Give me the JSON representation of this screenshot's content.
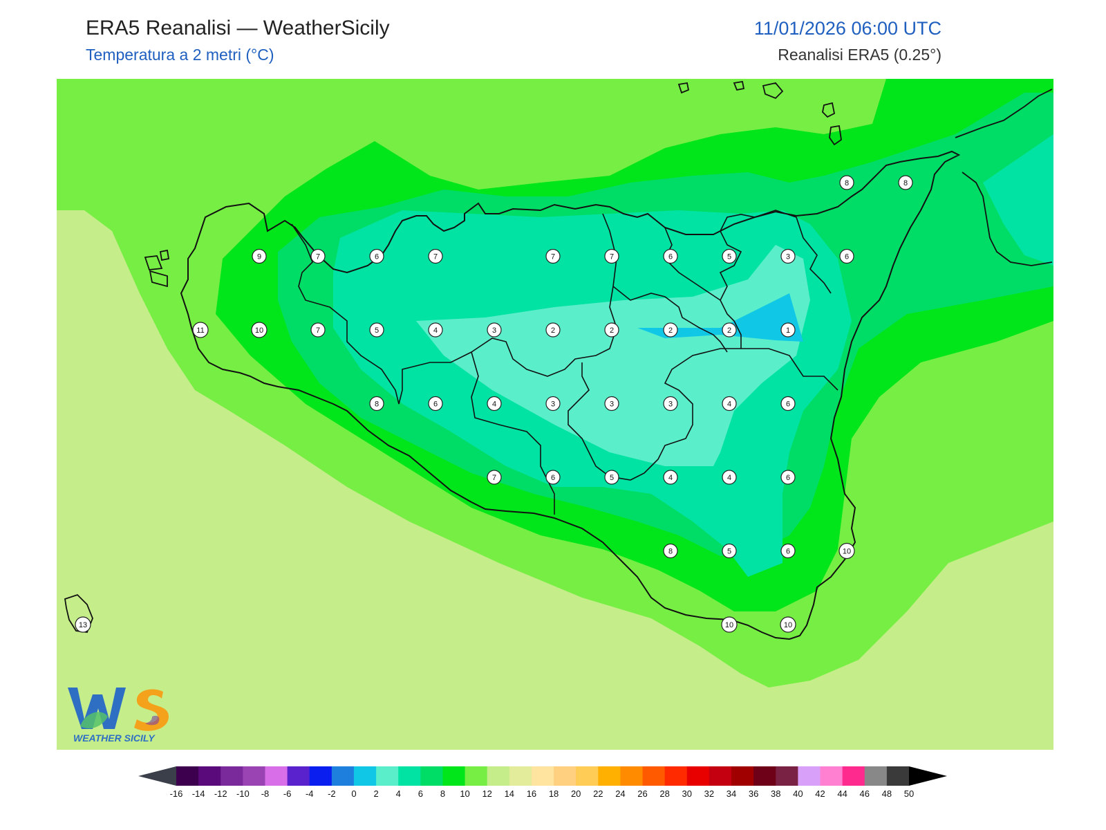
{
  "header": {
    "title": "ERA5 Reanalisi — WeatherSicily",
    "subtitle": "Temperatura a 2 metri (°C)",
    "datetime": "11/01/2026 06:00 UTC",
    "source": "Reanalisi ERA5 (0.25°)"
  },
  "colors": {
    "accent_blue": "#1f5fbf",
    "sea_background": "#c5ee8a",
    "band_12": "#77ee44",
    "band_10": "#00e61a",
    "band_8": "#00dd66",
    "band_6": "#00e3a3",
    "band_4": "#5aeecb",
    "band_2": "#10c8e6"
  },
  "logo": {
    "letters": "WS",
    "text": "WEATHER SICILY"
  },
  "point_labels": [
    {
      "v": "9",
      "lon": 12.5,
      "lat": 38.0
    },
    {
      "v": "7",
      "lon": 13.0,
      "lat": 38.0
    },
    {
      "v": "6",
      "lon": 13.5,
      "lat": 38.0
    },
    {
      "v": "7",
      "lon": 14.0,
      "lat": 38.0
    },
    {
      "v": "7",
      "lon": 15.0,
      "lat": 38.0
    },
    {
      "v": "7",
      "lon": 15.5,
      "lat": 38.0
    },
    {
      "v": "6",
      "lon": 16.0,
      "lat": 38.0
    },
    {
      "v": "5",
      "lon": 16.5,
      "lat": 38.0
    },
    {
      "v": "3",
      "lon": 17.0,
      "lat": 38.0
    },
    {
      "v": "6",
      "lon": 17.5,
      "lat": 38.0
    },
    {
      "v": "8",
      "lon": 17.5,
      "lat": 38.5
    },
    {
      "v": "8",
      "lon": 18.0,
      "lat": 38.5
    },
    {
      "v": "11",
      "lon": 12.0,
      "lat": 37.5
    },
    {
      "v": "10",
      "lon": 12.5,
      "lat": 37.5
    },
    {
      "v": "7",
      "lon": 13.0,
      "lat": 37.5
    },
    {
      "v": "5",
      "lon": 13.5,
      "lat": 37.5
    },
    {
      "v": "4",
      "lon": 14.0,
      "lat": 37.5
    },
    {
      "v": "3",
      "lon": 14.5,
      "lat": 37.5
    },
    {
      "v": "2",
      "lon": 15.0,
      "lat": 37.5
    },
    {
      "v": "2",
      "lon": 15.5,
      "lat": 37.5
    },
    {
      "v": "2",
      "lon": 16.0,
      "lat": 37.5
    },
    {
      "v": "2",
      "lon": 16.5,
      "lat": 37.5
    },
    {
      "v": "1",
      "lon": 17.0,
      "lat": 37.5
    },
    {
      "v": "8",
      "lon": 13.5,
      "lat": 37.0
    },
    {
      "v": "6",
      "lon": 14.0,
      "lat": 37.0
    },
    {
      "v": "4",
      "lon": 14.5,
      "lat": 37.0
    },
    {
      "v": "3",
      "lon": 15.0,
      "lat": 37.0
    },
    {
      "v": "3",
      "lon": 15.5,
      "lat": 37.0
    },
    {
      "v": "3",
      "lon": 16.0,
      "lat": 37.0
    },
    {
      "v": "4",
      "lon": 16.5,
      "lat": 37.0
    },
    {
      "v": "6",
      "lon": 17.0,
      "lat": 37.0
    },
    {
      "v": "7",
      "lon": 14.5,
      "lat": 36.5
    },
    {
      "v": "6",
      "lon": 15.0,
      "lat": 36.5
    },
    {
      "v": "5",
      "lon": 15.5,
      "lat": 36.5
    },
    {
      "v": "4",
      "lon": 16.0,
      "lat": 36.5
    },
    {
      "v": "4",
      "lon": 16.5,
      "lat": 36.5
    },
    {
      "v": "6",
      "lon": 17.0,
      "lat": 36.5
    },
    {
      "v": "8",
      "lon": 16.0,
      "lat": 36.0
    },
    {
      "v": "5",
      "lon": 16.5,
      "lat": 36.0
    },
    {
      "v": "6",
      "lon": 17.0,
      "lat": 36.0
    },
    {
      "v": "10",
      "lon": 17.5,
      "lat": 36.0
    },
    {
      "v": "10",
      "lon": 16.5,
      "lat": 35.5
    },
    {
      "v": "10",
      "lon": 17.0,
      "lat": 35.5
    },
    {
      "v": "13",
      "lon": 11.0,
      "lat": 35.5
    }
  ],
  "colorbar": {
    "ticks": [
      "-16",
      "-14",
      "-12",
      "-10",
      "-8",
      "-6",
      "-4",
      "-2",
      "0",
      "2",
      "4",
      "6",
      "8",
      "10",
      "12",
      "14",
      "16",
      "18",
      "20",
      "22",
      "24",
      "26",
      "28",
      "30",
      "32",
      "34",
      "36",
      "38",
      "40",
      "42",
      "44",
      "46",
      "48",
      "50"
    ],
    "colors": [
      "#3d004f",
      "#5a0a7a",
      "#7a2a9a",
      "#9a44b4",
      "#d86ee8",
      "#5a22cc",
      "#0a1ef0",
      "#1f7fdd",
      "#10c8e6",
      "#5aeecb",
      "#00e3a3",
      "#00dd66",
      "#00e61a",
      "#77ee44",
      "#c5ee8a",
      "#e2ec9a",
      "#ffe4a0",
      "#ffd080",
      "#ffcc55",
      "#ffb000",
      "#ff8c00",
      "#ff5a00",
      "#ff2a00",
      "#e80000",
      "#c40010",
      "#a00000",
      "#6e0018",
      "#7a2244",
      "#d8a0f8",
      "#ff80d0",
      "#ff2a8e",
      "#888888",
      "#3a3a3a"
    ],
    "low_cap_color": "#3a3f4a",
    "high_cap_color": "#000000"
  }
}
